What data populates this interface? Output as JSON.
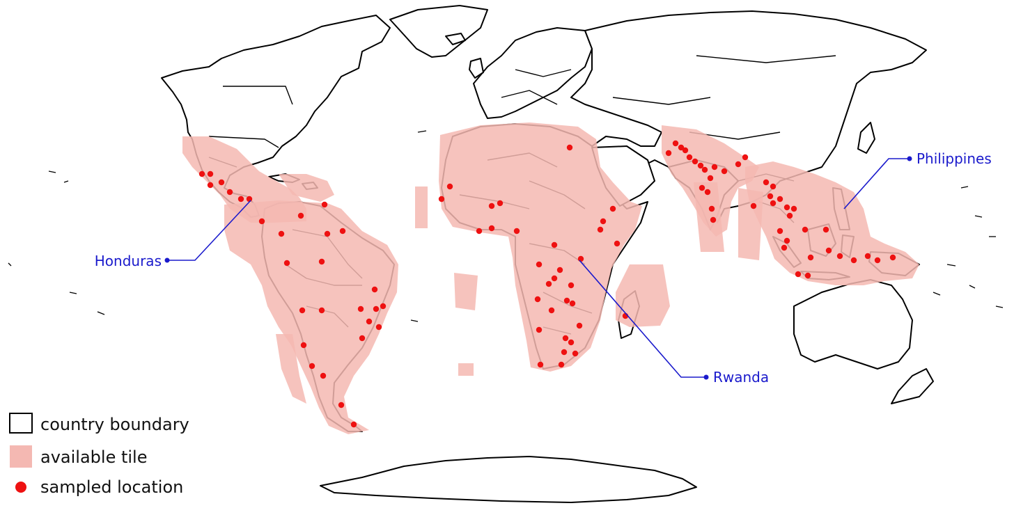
{
  "map": {
    "callouts": {
      "honduras": "Honduras",
      "philippines": "Philippines",
      "rwanda": "Rwanda"
    },
    "legend": {
      "country_boundary": "country boundary",
      "available_tile": "available tile",
      "sampled_location": "sampled location"
    },
    "colors": {
      "tile_fill": "#f4b8b2",
      "sample_dot": "#ee1111",
      "callout": "#1a1acc",
      "boundary": "#000000"
    }
  }
}
